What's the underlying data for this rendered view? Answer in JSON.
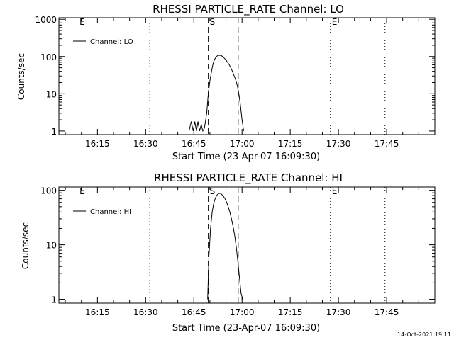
{
  "timestamp": "14-Oct-2021 19:11",
  "chart_data": [
    {
      "type": "line",
      "title": "RHESSI PARTICLE_RATE Channel: LO",
      "xlabel": "Start Time (23-Apr-07 16:09:30)",
      "ylabel": "Counts/sec",
      "yscale": "log",
      "ylim": [
        0.8,
        1100
      ],
      "xlim_minutes": [
        -6,
        111
      ],
      "x_ticks": [
        {
          "t": 6,
          "label": "16:15"
        },
        {
          "t": 21,
          "label": "16:30"
        },
        {
          "t": 36,
          "label": "16:45"
        },
        {
          "t": 51,
          "label": "17:00"
        },
        {
          "t": 66,
          "label": "17:15"
        },
        {
          "t": 81,
          "label": "17:30"
        },
        {
          "t": 96,
          "label": "17:45"
        }
      ],
      "y_ticks": [
        {
          "v": 1,
          "label": "1"
        },
        {
          "v": 10,
          "label": "10"
        },
        {
          "v": 100,
          "label": "100"
        },
        {
          "v": 1000,
          "label": "1000"
        }
      ],
      "legend": {
        "label": "Channel: LO",
        "position": "top-left"
      },
      "markers": [
        {
          "t": 40.5,
          "label": "S",
          "style": "dashed"
        },
        {
          "t": 49.8,
          "label": "",
          "style": "dashed"
        },
        {
          "t": 78.5,
          "label": "E",
          "style": "dotted"
        },
        {
          "t": 22.3,
          "label": "",
          "style": "dotted"
        },
        {
          "t": 95.5,
          "label": "",
          "style": "dotted"
        },
        {
          "t": 0,
          "label": "E",
          "style": "none"
        }
      ],
      "series": [
        {
          "name": "Channel: LO",
          "x": [
            34.5,
            35.2,
            35.8,
            36.3,
            36.8,
            37.3,
            37.8,
            38.3,
            38.8,
            39.3,
            40.0,
            40.5,
            41.0,
            41.5,
            42.0,
            42.5,
            43.0,
            43.5,
            44.0,
            44.5,
            45.0,
            45.5,
            46.0,
            46.5,
            47.0,
            47.5,
            48.0,
            48.5,
            49.0,
            49.5,
            50.0,
            50.5,
            51.0,
            51.5
          ],
          "y": [
            1.0,
            1.8,
            1.0,
            1.8,
            1.0,
            1.8,
            1.0,
            1.5,
            1.0,
            1.2,
            3.0,
            10,
            22,
            40,
            65,
            85,
            100,
            107,
            108,
            106,
            100,
            90,
            80,
            70,
            60,
            50,
            40,
            31,
            24,
            17,
            10,
            5,
            2,
            1
          ]
        }
      ]
    },
    {
      "type": "line",
      "title": "RHESSI PARTICLE_RATE Channel: HI",
      "xlabel": "Start Time (23-Apr-07 16:09:30)",
      "ylabel": "Counts/sec",
      "yscale": "log",
      "ylim": [
        0.85,
        115
      ],
      "xlim_minutes": [
        -6,
        111
      ],
      "x_ticks": [
        {
          "t": 6,
          "label": "16:15"
        },
        {
          "t": 21,
          "label": "16:30"
        },
        {
          "t": 36,
          "label": "16:45"
        },
        {
          "t": 51,
          "label": "17:00"
        },
        {
          "t": 66,
          "label": "17:15"
        },
        {
          "t": 81,
          "label": "17:30"
        },
        {
          "t": 96,
          "label": "17:45"
        }
      ],
      "y_ticks": [
        {
          "v": 1,
          "label": "1"
        },
        {
          "v": 10,
          "label": "10"
        },
        {
          "v": 100,
          "label": "100"
        }
      ],
      "legend": {
        "label": "Channel: HI",
        "position": "top-left"
      },
      "markers": [
        {
          "t": 40.5,
          "label": "S",
          "style": "dashed"
        },
        {
          "t": 49.8,
          "label": "",
          "style": "dashed"
        },
        {
          "t": 78.5,
          "label": "E",
          "style": "dotted"
        },
        {
          "t": 22.3,
          "label": "",
          "style": "dotted"
        },
        {
          "t": 95.5,
          "label": "",
          "style": "dotted"
        },
        {
          "t": 0,
          "label": "E",
          "style": "none"
        }
      ],
      "series": [
        {
          "name": "Channel: HI",
          "x": [
            40.3,
            40.7,
            41.2,
            41.7,
            42.2,
            42.7,
            43.2,
            43.7,
            44.2,
            44.7,
            45.2,
            45.7,
            46.2,
            46.7,
            47.2,
            47.7,
            48.2,
            48.7,
            49.2,
            49.7,
            50.2,
            50.7,
            51.2
          ],
          "y": [
            1.0,
            6,
            20,
            40,
            58,
            72,
            82,
            87,
            88,
            84,
            78,
            70,
            60,
            50,
            40,
            30,
            22,
            15,
            9,
            5,
            2.5,
            1.3,
            1.0
          ]
        }
      ]
    }
  ]
}
